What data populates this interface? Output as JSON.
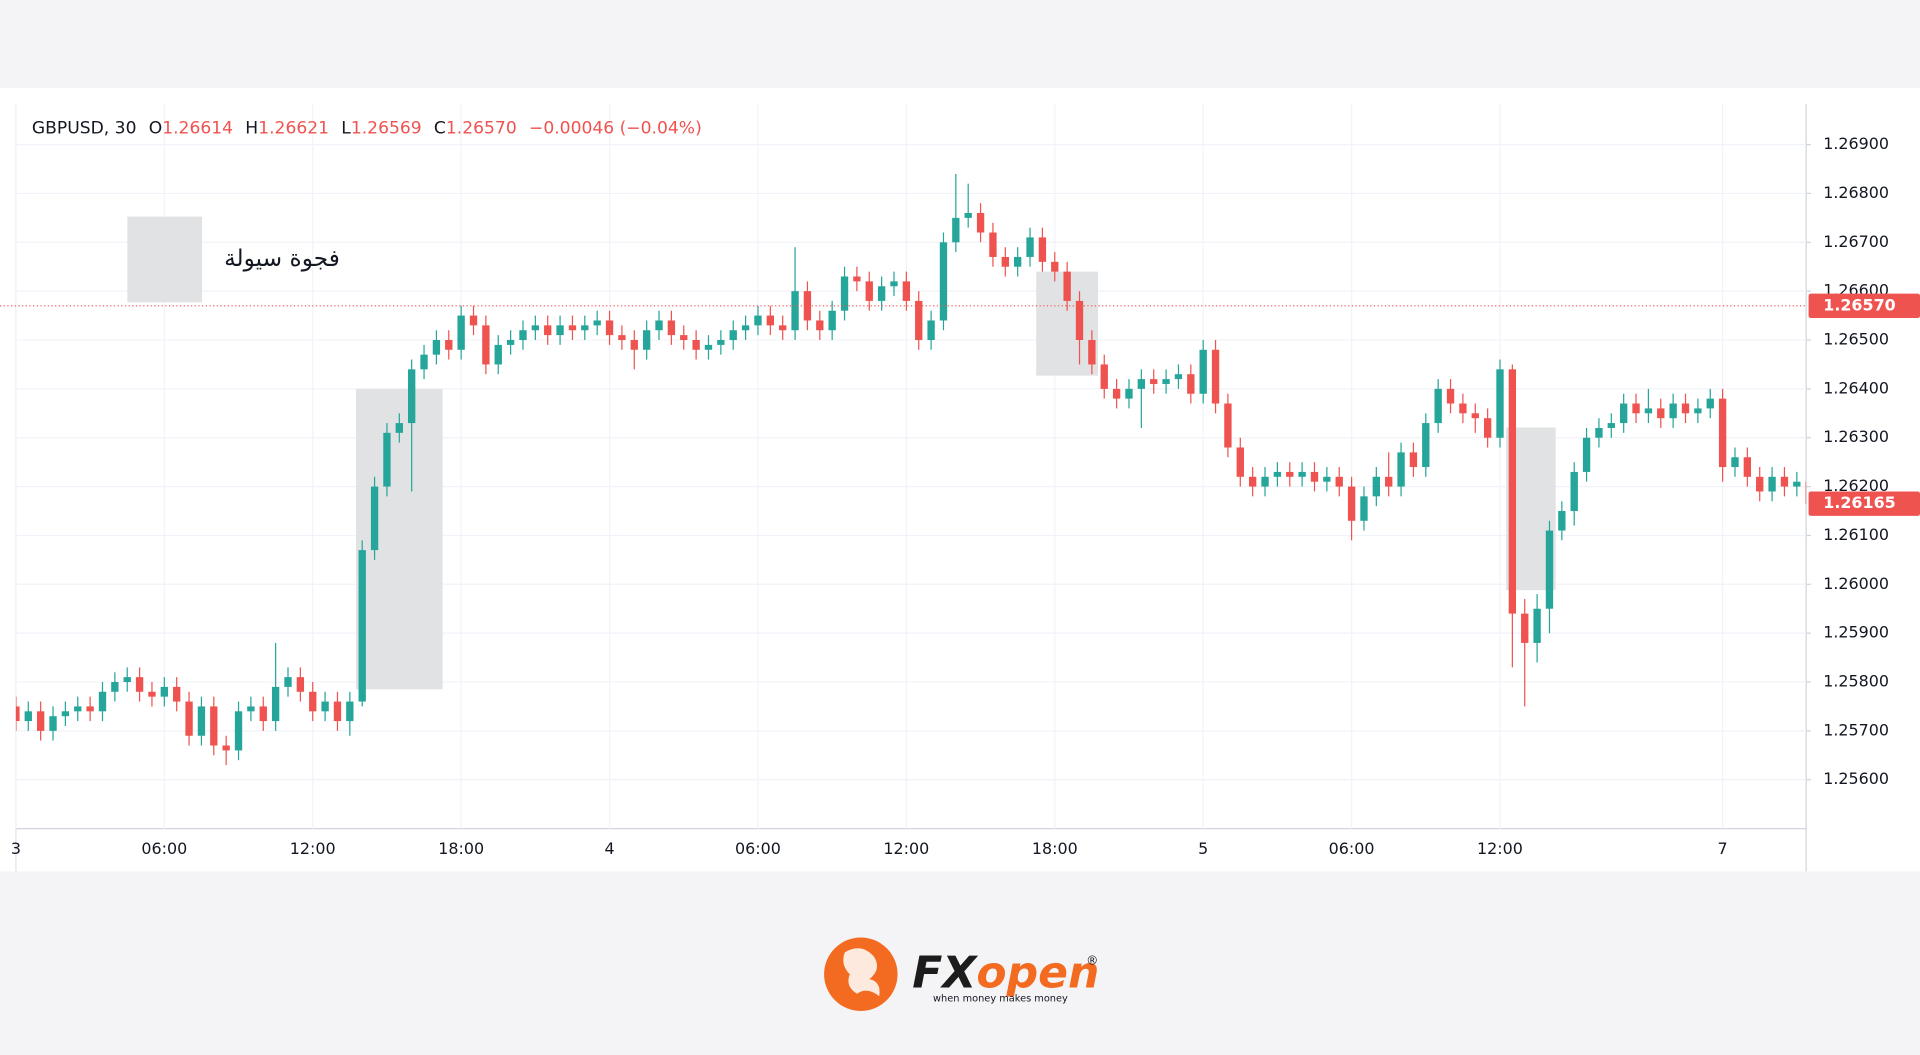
{
  "header": {
    "symbol": "GBPUSD, 30",
    "fields": [
      {
        "label": "O",
        "value": "1.26614"
      },
      {
        "label": "H",
        "value": "1.26621"
      },
      {
        "label": "L",
        "value": "1.26569"
      },
      {
        "label": "C",
        "value": "1.26570"
      }
    ],
    "change": "−0.00046 (−0.04%)"
  },
  "brand": {
    "fx": "FX",
    "open": "open",
    "mark": "®",
    "tagline": "when money makes money"
  },
  "chart_data": {
    "type": "candlestick",
    "zone_label": "فجوة سيولة",
    "up_color": "#26a69a",
    "down_color": "#ef5350",
    "zone_color": "#e1e2e4",
    "grid": true,
    "categories": [
      "3",
      null,
      null,
      null,
      null,
      null,
      null,
      null,
      null,
      null,
      null,
      null,
      "06:00",
      null,
      null,
      null,
      null,
      null,
      null,
      null,
      null,
      null,
      null,
      null,
      "12:00",
      null,
      null,
      null,
      null,
      null,
      null,
      null,
      null,
      null,
      null,
      null,
      "18:00",
      null,
      null,
      null,
      null,
      null,
      null,
      null,
      null,
      null,
      null,
      null,
      "4",
      null,
      null,
      null,
      null,
      null,
      null,
      null,
      null,
      null,
      null,
      null,
      "06:00",
      null,
      null,
      null,
      null,
      null,
      null,
      null,
      null,
      null,
      null,
      null,
      "12:00",
      null,
      null,
      null,
      null,
      null,
      null,
      null,
      null,
      null,
      null,
      null,
      "18:00",
      null,
      null,
      null,
      null,
      null,
      null,
      null,
      null,
      null,
      null,
      null,
      "5",
      null,
      null,
      null,
      null,
      null,
      null,
      null,
      null,
      null,
      null,
      null,
      "06:00",
      null,
      null,
      null,
      null,
      null,
      null,
      null,
      null,
      null,
      null,
      null,
      "12:00",
      null,
      null,
      null,
      null,
      null,
      null,
      null,
      null,
      null,
      null,
      null,
      null,
      null,
      null,
      null,
      null,
      null,
      "7",
      null,
      null,
      null,
      null,
      null,
      null,
      null
    ],
    "open": [
      1.2575,
      1.2572,
      1.2574,
      1.257,
      1.2573,
      1.2574,
      1.2575,
      1.2574,
      1.2578,
      1.258,
      1.2581,
      1.2578,
      1.2577,
      1.2579,
      1.2576,
      1.2569,
      1.2575,
      1.2567,
      1.2566,
      1.2574,
      1.2575,
      1.2572,
      1.2579,
      1.2581,
      1.2578,
      1.2574,
      1.2576,
      1.2572,
      1.2576,
      1.2607,
      1.262,
      1.2631,
      1.2633,
      1.2644,
      1.2647,
      1.265,
      1.2648,
      1.2655,
      1.2653,
      1.2645,
      1.2649,
      1.265,
      1.2652,
      1.2653,
      1.2651,
      1.2653,
      1.2652,
      1.2653,
      1.2654,
      1.2651,
      1.265,
      1.2648,
      1.2652,
      1.2654,
      1.2651,
      1.265,
      1.2648,
      1.2649,
      1.265,
      1.2652,
      1.2653,
      1.2655,
      1.2653,
      1.2652,
      1.266,
      1.2654,
      1.2652,
      1.2656,
      1.2663,
      1.2662,
      1.2658,
      1.2661,
      1.2662,
      1.2658,
      1.265,
      1.2654,
      1.267,
      1.2675,
      1.2676,
      1.2672,
      1.2667,
      1.2665,
      1.2667,
      1.2671,
      1.2666,
      1.2664,
      1.2658,
      1.265,
      1.2645,
      1.264,
      1.2638,
      1.264,
      1.2642,
      1.2641,
      1.2642,
      1.2643,
      1.2639,
      1.2648,
      1.2637,
      1.2628,
      1.2622,
      1.262,
      1.2622,
      1.2623,
      1.2622,
      1.2623,
      1.2621,
      1.2622,
      1.262,
      1.2613,
      1.2618,
      1.2622,
      1.262,
      1.2627,
      1.2624,
      1.2633,
      1.264,
      1.2637,
      1.2635,
      1.2634,
      1.263,
      1.2644,
      1.2594,
      1.2588,
      1.2595,
      1.2611,
      1.2615,
      1.2623,
      1.263,
      1.2632,
      1.2633,
      1.2637,
      1.2635,
      1.2636,
      1.2634,
      1.2637,
      1.2635,
      1.2636,
      1.2638,
      1.2624,
      1.2626,
      1.2622,
      1.2619,
      1.2622,
      1.262,
      1.2621
    ],
    "high": [
      1.2577,
      1.2576,
      1.2576,
      1.2575,
      1.2576,
      1.2577,
      1.2577,
      1.258,
      1.2582,
      1.2583,
      1.2583,
      1.258,
      1.2581,
      1.2581,
      1.2578,
      1.2577,
      1.2577,
      1.2569,
      1.2576,
      1.2577,
      1.2577,
      1.2588,
      1.2583,
      1.2583,
      1.258,
      1.2578,
      1.2578,
      1.2578,
      1.2609,
      1.2622,
      1.2633,
      1.2635,
      1.2646,
      1.2649,
      1.2652,
      1.2652,
      1.2657,
      1.2657,
      1.2655,
      1.2651,
      1.2652,
      1.2654,
      1.2655,
      1.2655,
      1.2655,
      1.2655,
      1.2655,
      1.2656,
      1.2656,
      1.2653,
      1.2652,
      1.2654,
      1.2656,
      1.2656,
      1.2653,
      1.2652,
      1.2651,
      1.2652,
      1.2654,
      1.2655,
      1.2657,
      1.2657,
      1.2655,
      1.2669,
      1.2662,
      1.2656,
      1.2658,
      1.2665,
      1.2665,
      1.2664,
      1.2663,
      1.2664,
      1.2664,
      1.266,
      1.2656,
      1.2672,
      1.2684,
      1.2682,
      1.2678,
      1.2674,
      1.2669,
      1.2669,
      1.2673,
      1.2673,
      1.2668,
      1.2666,
      1.266,
      1.2652,
      1.2647,
      1.2642,
      1.2642,
      1.2644,
      1.2644,
      1.2644,
      1.2645,
      1.2645,
      1.265,
      1.265,
      1.2639,
      1.263,
      1.2624,
      1.2624,
      1.2625,
      1.2625,
      1.2625,
      1.2625,
      1.2624,
      1.2624,
      1.2622,
      1.262,
      1.2624,
      1.2627,
      1.2629,
      1.2629,
      1.2635,
      1.2642,
      1.2642,
      1.2639,
      1.2637,
      1.2636,
      1.2646,
      1.2645,
      1.2597,
      1.2598,
      1.2613,
      1.2617,
      1.2625,
      1.2632,
      1.2634,
      1.2635,
      1.2639,
      1.2639,
      1.264,
      1.2638,
      1.2639,
      1.2639,
      1.2638,
      1.264,
      1.264,
      1.2628,
      1.2628,
      1.2624,
      1.2624,
      1.2624,
      1.2623,
      1.2623
    ],
    "low": [
      1.257,
      1.257,
      1.2568,
      1.2568,
      1.2571,
      1.2572,
      1.2572,
      1.2572,
      1.2576,
      1.2578,
      1.2576,
      1.2575,
      1.2575,
      1.2574,
      1.2567,
      1.2567,
      1.2565,
      1.2563,
      1.2564,
      1.2572,
      1.257,
      1.257,
      1.2577,
      1.2576,
      1.2572,
      1.2572,
      1.257,
      1.2569,
      1.2575,
      1.2605,
      1.2618,
      1.2629,
      1.2619,
      1.2642,
      1.2645,
      1.2646,
      1.2646,
      1.2651,
      1.2643,
      1.2643,
      1.2647,
      1.2648,
      1.265,
      1.2649,
      1.2649,
      1.265,
      1.265,
      1.2651,
      1.2649,
      1.2648,
      1.2644,
      1.2646,
      1.265,
      1.2649,
      1.2648,
      1.2646,
      1.2646,
      1.2647,
      1.2648,
      1.265,
      1.2651,
      1.2651,
      1.265,
      1.265,
      1.2652,
      1.265,
      1.265,
      1.2654,
      1.266,
      1.2656,
      1.2656,
      1.2659,
      1.2656,
      1.2648,
      1.2648,
      1.2652,
      1.2668,
      1.2673,
      1.267,
      1.2665,
      1.2663,
      1.2663,
      1.2665,
      1.2664,
      1.2662,
      1.2656,
      1.2645,
      1.2643,
      1.2638,
      1.2636,
      1.2636,
      1.2632,
      1.2639,
      1.2639,
      1.264,
      1.2637,
      1.2637,
      1.2635,
      1.2626,
      1.262,
      1.2618,
      1.2618,
      1.262,
      1.262,
      1.262,
      1.2619,
      1.2619,
      1.2618,
      1.2609,
      1.2611,
      1.2616,
      1.2618,
      1.2618,
      1.2622,
      1.2622,
      1.2631,
      1.2635,
      1.2633,
      1.2631,
      1.2628,
      1.2628,
      1.2583,
      1.2575,
      1.2584,
      1.259,
      1.2609,
      1.2612,
      1.2621,
      1.2628,
      1.263,
      1.2631,
      1.2633,
      1.2633,
      1.2632,
      1.2632,
      1.2633,
      1.2633,
      1.2634,
      1.2621,
      1.2622,
      1.262,
      1.2617,
      1.2617,
      1.2618,
      1.2618,
      1.2615
    ],
    "close": [
      1.2572,
      1.2574,
      1.257,
      1.2573,
      1.2574,
      1.2575,
      1.2574,
      1.2578,
      1.258,
      1.2581,
      1.2578,
      1.2577,
      1.2579,
      1.2576,
      1.2569,
      1.2575,
      1.2567,
      1.2566,
      1.2574,
      1.2575,
      1.2572,
      1.2579,
      1.2581,
      1.2578,
      1.2574,
      1.2576,
      1.2572,
      1.2576,
      1.2607,
      1.262,
      1.2631,
      1.2633,
      1.2644,
      1.2647,
      1.265,
      1.2648,
      1.2655,
      1.2653,
      1.2645,
      1.2649,
      1.265,
      1.2652,
      1.2653,
      1.2651,
      1.2653,
      1.2652,
      1.2653,
      1.2654,
      1.2651,
      1.265,
      1.2648,
      1.2652,
      1.2654,
      1.2651,
      1.265,
      1.2648,
      1.2649,
      1.265,
      1.2652,
      1.2653,
      1.2655,
      1.2653,
      1.2652,
      1.266,
      1.2654,
      1.2652,
      1.2656,
      1.2663,
      1.2662,
      1.2658,
      1.2661,
      1.2662,
      1.2658,
      1.265,
      1.2654,
      1.267,
      1.2675,
      1.2676,
      1.2672,
      1.2667,
      1.2665,
      1.2667,
      1.2671,
      1.2666,
      1.2664,
      1.2658,
      1.265,
      1.2645,
      1.264,
      1.2638,
      1.264,
      1.2642,
      1.2641,
      1.2642,
      1.2643,
      1.2639,
      1.2648,
      1.2637,
      1.2628,
      1.2622,
      1.262,
      1.2622,
      1.2623,
      1.2622,
      1.2623,
      1.2621,
      1.2622,
      1.262,
      1.2613,
      1.2618,
      1.2622,
      1.262,
      1.2627,
      1.2624,
      1.2633,
      1.264,
      1.2637,
      1.2635,
      1.2634,
      1.263,
      1.2644,
      1.2594,
      1.2588,
      1.2595,
      1.2611,
      1.2615,
      1.2623,
      1.263,
      1.2632,
      1.2633,
      1.2637,
      1.2635,
      1.2636,
      1.2634,
      1.2637,
      1.2635,
      1.2636,
      1.2638,
      1.2624,
      1.2626,
      1.2622,
      1.2619,
      1.2622,
      1.262,
      1.2621,
      1.26165
    ],
    "zones": [
      {
        "from": 28,
        "to": 34,
        "high": 1.264,
        "low": 1.25785
      },
      {
        "from": 83,
        "to": 87,
        "high": 1.2664,
        "low": 1.26427
      },
      {
        "from": 121,
        "to": 124,
        "high": 1.26321,
        "low": 1.25988
      }
    ],
    "price_lines": [
      {
        "value": 1.2657,
        "label": "1.26570",
        "style": "dotted"
      },
      {
        "value": 1.26165,
        "label": "1.26165"
      }
    ],
    "ylim": [
      1.255,
      1.26983
    ],
    "yticks": [
      {
        "value": 1.269,
        "label": "1.26900"
      },
      {
        "value": 1.268,
        "label": "1.26800"
      },
      {
        "value": 1.267,
        "label": "1.26700"
      },
      {
        "value": 1.266,
        "label": "1.26600"
      },
      {
        "value": 1.265,
        "label": "1.26500"
      },
      {
        "value": 1.264,
        "label": "1.26400"
      },
      {
        "value": 1.263,
        "label": "1.26300"
      },
      {
        "value": 1.262,
        "label": "1.26200"
      },
      {
        "value": 1.261,
        "label": "1.26100"
      },
      {
        "value": 1.26,
        "label": "1.26000"
      },
      {
        "value": 1.259,
        "label": "1.25900"
      },
      {
        "value": 1.258,
        "label": "1.25800"
      },
      {
        "value": 1.257,
        "label": "1.25700"
      },
      {
        "value": 1.256,
        "label": "1.25600"
      }
    ]
  }
}
